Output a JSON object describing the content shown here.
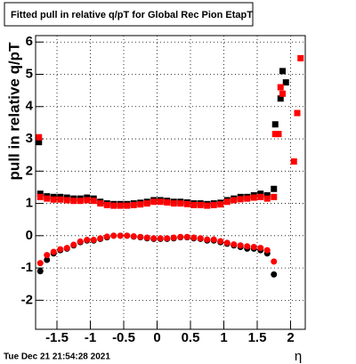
{
  "chart_data": {
    "type": "scatter",
    "title": "Fitted pull in relative q/pT for Global Rec Pion EtapT",
    "y_label": "pull in relative q/pT",
    "x_label": "η",
    "footer": "Tue Dec 21 21:54:28 2021",
    "xlim": [
      -1.82,
      2.22
    ],
    "ylim": [
      -2.9,
      6.2
    ],
    "xticks": [
      -1.5,
      -1,
      -0.5,
      0,
      0.5,
      1,
      1.5,
      2
    ],
    "yticks": [
      -2,
      -1,
      0,
      1,
      2,
      3,
      4,
      5,
      6
    ],
    "grid": true,
    "series": [
      {
        "color": "#000000",
        "marker": "square",
        "x": [
          -1.75,
          -1.65,
          -1.55,
          -1.45,
          -1.35,
          -1.25,
          -1.15,
          -1.05,
          -0.95,
          -0.85,
          -0.75,
          -0.65,
          -0.55,
          -0.45,
          -0.35,
          -0.25,
          -0.15,
          -0.05,
          0.05,
          0.15,
          0.25,
          0.35,
          0.45,
          0.55,
          0.65,
          0.75,
          0.85,
          0.95,
          1.05,
          1.15,
          1.25,
          1.35,
          1.45,
          1.55,
          1.65,
          1.75,
          -1.77,
          1.77,
          1.85,
          1.88,
          1.93
        ],
        "values": [
          1.3,
          1.22,
          1.2,
          1.2,
          1.18,
          1.15,
          1.15,
          1.18,
          1.15,
          1.05,
          1.0,
          0.98,
          0.98,
          0.98,
          1.0,
          1.02,
          1.05,
          1.1,
          1.1,
          1.08,
          1.05,
          1.05,
          1.03,
          1.0,
          1.0,
          0.98,
          1.0,
          1.02,
          1.1,
          1.15,
          1.2,
          1.2,
          1.25,
          1.3,
          1.25,
          1.45,
          2.9,
          3.45,
          4.25,
          5.1,
          4.75
        ]
      },
      {
        "color": "#ff0000",
        "marker": "square",
        "x": [
          -1.75,
          -1.65,
          -1.55,
          -1.45,
          -1.35,
          -1.25,
          -1.15,
          -1.05,
          -0.95,
          -0.85,
          -0.75,
          -0.65,
          -0.55,
          -0.45,
          -0.35,
          -0.25,
          -0.15,
          -0.05,
          0.05,
          0.15,
          0.25,
          0.35,
          0.45,
          0.55,
          0.65,
          0.75,
          0.85,
          0.95,
          1.05,
          1.15,
          1.25,
          1.35,
          1.45,
          1.55,
          1.65,
          1.75,
          -1.77,
          1.77,
          1.82,
          1.85,
          1.88,
          2.05,
          2.1,
          2.15
        ],
        "values": [
          1.2,
          1.15,
          1.12,
          1.12,
          1.1,
          1.08,
          1.08,
          1.1,
          1.08,
          1.0,
          0.95,
          0.93,
          0.93,
          0.93,
          0.95,
          0.97,
          1.0,
          1.05,
          1.05,
          1.03,
          1.0,
          1.0,
          0.98,
          0.95,
          0.95,
          0.93,
          0.95,
          0.97,
          1.05,
          1.1,
          1.13,
          1.15,
          1.18,
          1.2,
          1.15,
          1.2,
          3.05,
          3.15,
          3.15,
          4.6,
          4.4,
          2.3,
          3.8,
          5.5
        ]
      },
      {
        "color": "#000000",
        "marker": "circle",
        "x": [
          -1.75,
          -1.65,
          -1.55,
          -1.45,
          -1.35,
          -1.25,
          -1.15,
          -1.05,
          -0.95,
          -0.85,
          -0.75,
          -0.65,
          -0.55,
          -0.45,
          -0.35,
          -0.25,
          -0.15,
          -0.05,
          0.05,
          0.15,
          0.25,
          0.35,
          0.45,
          0.55,
          0.65,
          0.75,
          0.85,
          0.95,
          1.05,
          1.15,
          1.25,
          1.35,
          1.45,
          1.55,
          1.65,
          1.75
        ],
        "values": [
          -1.1,
          -0.75,
          -0.55,
          -0.45,
          -0.4,
          -0.3,
          -0.2,
          -0.15,
          -0.15,
          -0.1,
          -0.05,
          0,
          0,
          0,
          -0.03,
          -0.05,
          -0.08,
          -0.1,
          -0.1,
          -0.1,
          -0.08,
          -0.05,
          -0.05,
          -0.08,
          -0.1,
          -0.15,
          -0.15,
          -0.2,
          -0.25,
          -0.3,
          -0.35,
          -0.4,
          -0.4,
          -0.45,
          -0.55,
          -1.2
        ]
      },
      {
        "color": "#ff0000",
        "marker": "circle",
        "x": [
          -1.75,
          -1.65,
          -1.55,
          -1.45,
          -1.35,
          -1.25,
          -1.15,
          -1.05,
          -0.95,
          -0.85,
          -0.75,
          -0.65,
          -0.55,
          -0.45,
          -0.35,
          -0.25,
          -0.15,
          -0.05,
          0.05,
          0.15,
          0.25,
          0.35,
          0.45,
          0.55,
          0.65,
          0.75,
          0.85,
          0.95,
          1.05,
          1.15,
          1.25,
          1.35,
          1.45,
          1.55,
          1.65,
          1.75
        ],
        "values": [
          -0.85,
          -0.6,
          -0.5,
          -0.42,
          -0.38,
          -0.28,
          -0.18,
          -0.13,
          -0.13,
          -0.08,
          -0.03,
          0,
          0,
          0,
          -0.02,
          -0.04,
          -0.06,
          -0.08,
          -0.08,
          -0.08,
          -0.06,
          -0.04,
          -0.04,
          -0.06,
          -0.08,
          -0.12,
          -0.12,
          -0.17,
          -0.22,
          -0.27,
          -0.3,
          -0.33,
          -0.35,
          -0.38,
          -0.45,
          -0.8
        ]
      }
    ]
  }
}
